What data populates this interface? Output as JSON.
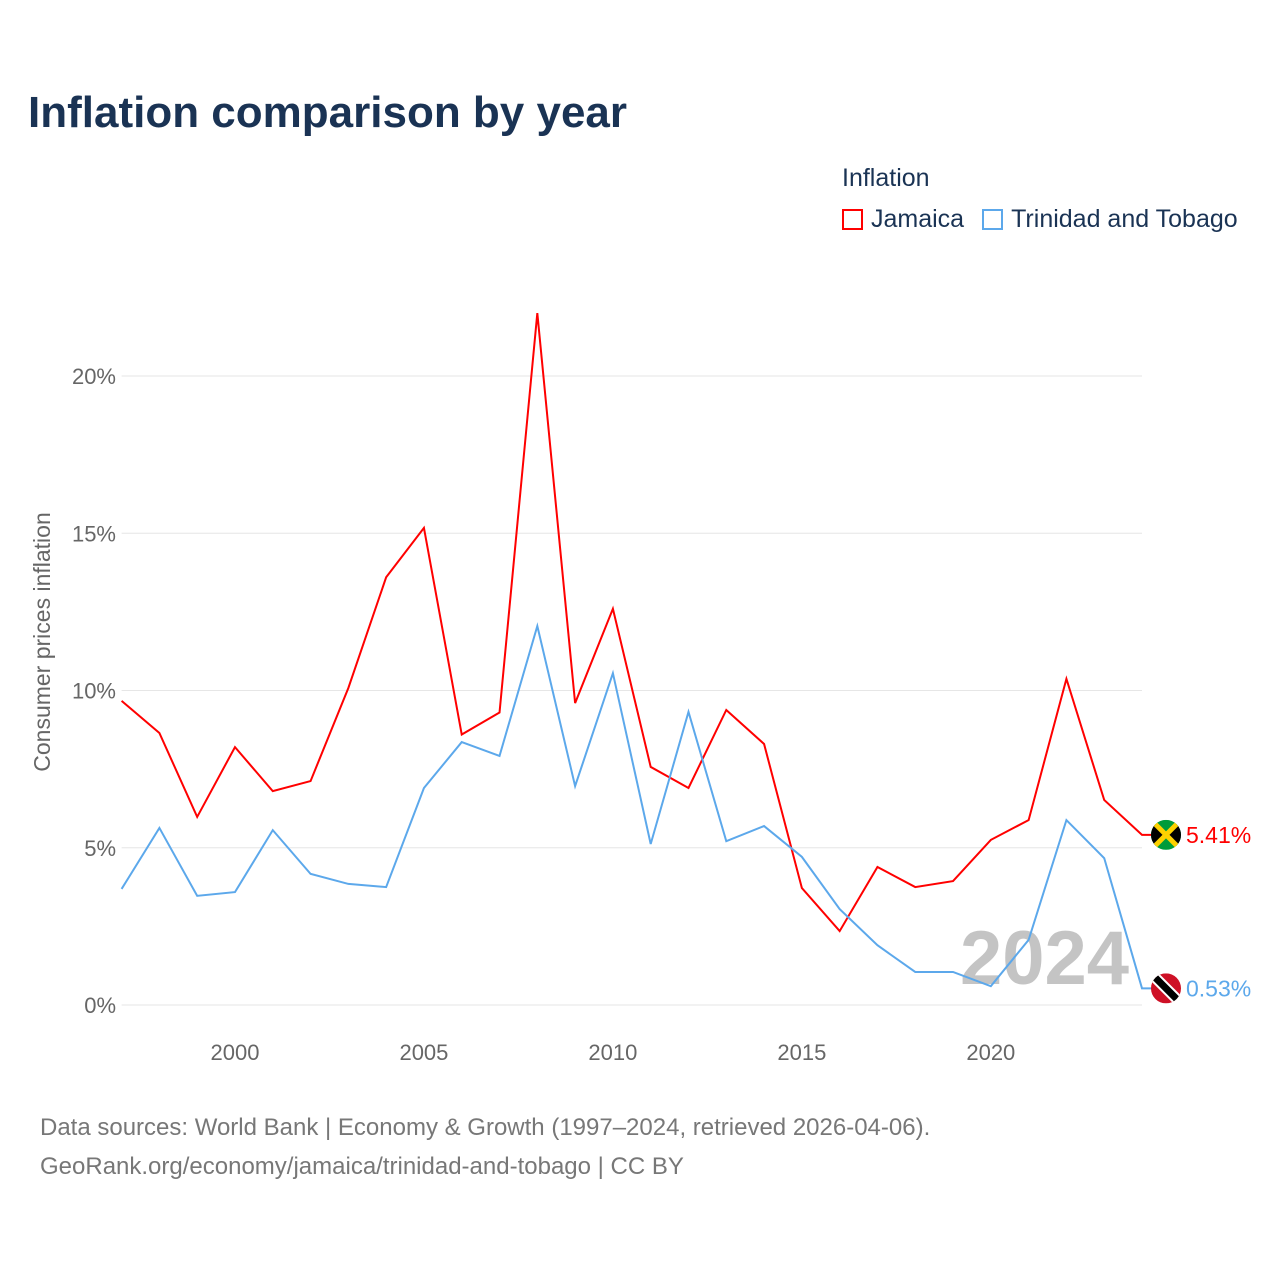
{
  "title": "Inflation comparison by year",
  "legend": {
    "title": "Inflation",
    "items": [
      {
        "label": "Jamaica",
        "color": "#ff0000"
      },
      {
        "label": "Trinidad and Tobago",
        "color": "#5ca8eb"
      }
    ]
  },
  "watermark_year": "2024",
  "footer": {
    "line1": "Data sources: World Bank | Economy & Growth (1997–2024, retrieved 2026-04-06).",
    "line2": "GeoRank.org/economy/jamaica/trinidad-and-tobago | CC BY"
  },
  "chart_data": {
    "type": "line",
    "title": "Inflation comparison by year",
    "xlabel": "",
    "ylabel": "Consumer prices inflation",
    "xlim": [
      1997,
      2024
    ],
    "ylim": [
      0,
      22
    ],
    "x_ticks": [
      2000,
      2005,
      2010,
      2015,
      2020
    ],
    "x_tick_labels": [
      "2000",
      "2005",
      "2010",
      "2015",
      "2020"
    ],
    "y_ticks": [
      0,
      5,
      10,
      15,
      20
    ],
    "y_tick_labels": [
      "0%",
      "5%",
      "10%",
      "15%",
      "20%"
    ],
    "grid": true,
    "legend_position": "top-right",
    "x": [
      1997,
      1998,
      1999,
      2000,
      2001,
      2002,
      2003,
      2004,
      2005,
      2006,
      2007,
      2008,
      2009,
      2010,
      2011,
      2012,
      2013,
      2014,
      2015,
      2016,
      2017,
      2018,
      2019,
      2020,
      2021,
      2022,
      2023,
      2024
    ],
    "series": [
      {
        "name": "Jamaica",
        "color": "#ff0000",
        "end_label": "5.41%",
        "values": [
          9.67,
          8.65,
          5.98,
          8.2,
          6.8,
          7.12,
          10.08,
          13.6,
          15.17,
          8.6,
          9.3,
          22.0,
          9.6,
          12.6,
          7.57,
          6.9,
          9.38,
          8.3,
          3.72,
          2.35,
          4.39,
          3.75,
          3.94,
          5.25,
          5.88,
          10.37,
          6.52,
          5.41
        ]
      },
      {
        "name": "Trinidad and Tobago",
        "color": "#5ca8eb",
        "end_label": "0.53%",
        "values": [
          3.69,
          5.63,
          3.47,
          3.59,
          5.56,
          4.17,
          3.85,
          3.75,
          6.9,
          8.36,
          7.92,
          12.05,
          6.96,
          10.55,
          5.12,
          9.32,
          5.21,
          5.69,
          4.71,
          3.05,
          1.9,
          1.05,
          1.05,
          0.6,
          2.07,
          5.88,
          4.67,
          0.53
        ]
      }
    ]
  }
}
